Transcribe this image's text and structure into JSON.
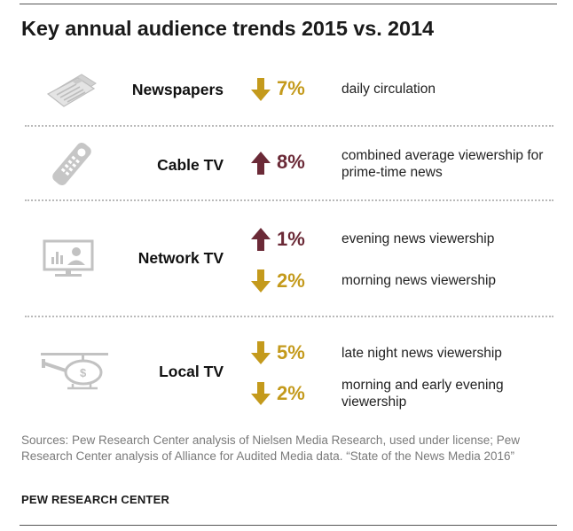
{
  "title": "Key annual audience trends 2015 vs. 2014",
  "colors": {
    "down": "#c49a1c",
    "up": "#6b2a37",
    "icon": "#c6c6c6"
  },
  "chart_data": {
    "type": "table",
    "title": "Key annual audience trends 2015 vs. 2014",
    "rows": [
      {
        "category": "Newspapers",
        "icon": "newspaper-icon",
        "metrics": [
          {
            "direction": "down",
            "value": "7%",
            "description": "daily circulation"
          }
        ]
      },
      {
        "category": "Cable TV",
        "icon": "remote-control-icon",
        "metrics": [
          {
            "direction": "up",
            "value": "8%",
            "description": "combined average viewership for prime-time news"
          }
        ]
      },
      {
        "category": "Network TV",
        "icon": "television-icon",
        "metrics": [
          {
            "direction": "up",
            "value": "1%",
            "description": "evening news viewership"
          },
          {
            "direction": "down",
            "value": "2%",
            "description": "morning news viewership"
          }
        ]
      },
      {
        "category": "Local TV",
        "icon": "helicopter-icon",
        "metrics": [
          {
            "direction": "down",
            "value": "5%",
            "description": "late night news viewership"
          },
          {
            "direction": "down",
            "value": "2%",
            "description": "morning and early evening viewership"
          }
        ]
      }
    ]
  },
  "source": "Sources: Pew Research Center analysis of Nielsen Media Research, used under license; Pew Research Center analysis of Alliance for Audited Media data. “State of the News Media 2016”",
  "credit": "PEW RESEARCH CENTER"
}
